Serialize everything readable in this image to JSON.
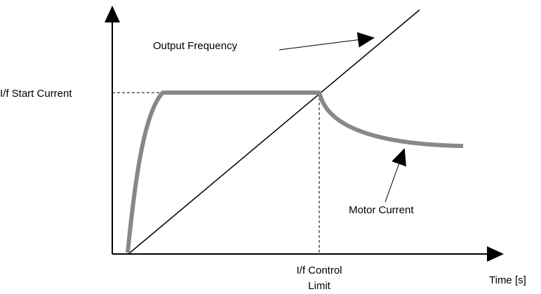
{
  "labels": {
    "output_frequency": "Output Frequency",
    "start_current": "I/f Start Current",
    "motor_current": "Motor Current",
    "control_limit_1": "I/f Control",
    "control_limit_2": "Limit",
    "time_axis": "Time [s]"
  }
}
